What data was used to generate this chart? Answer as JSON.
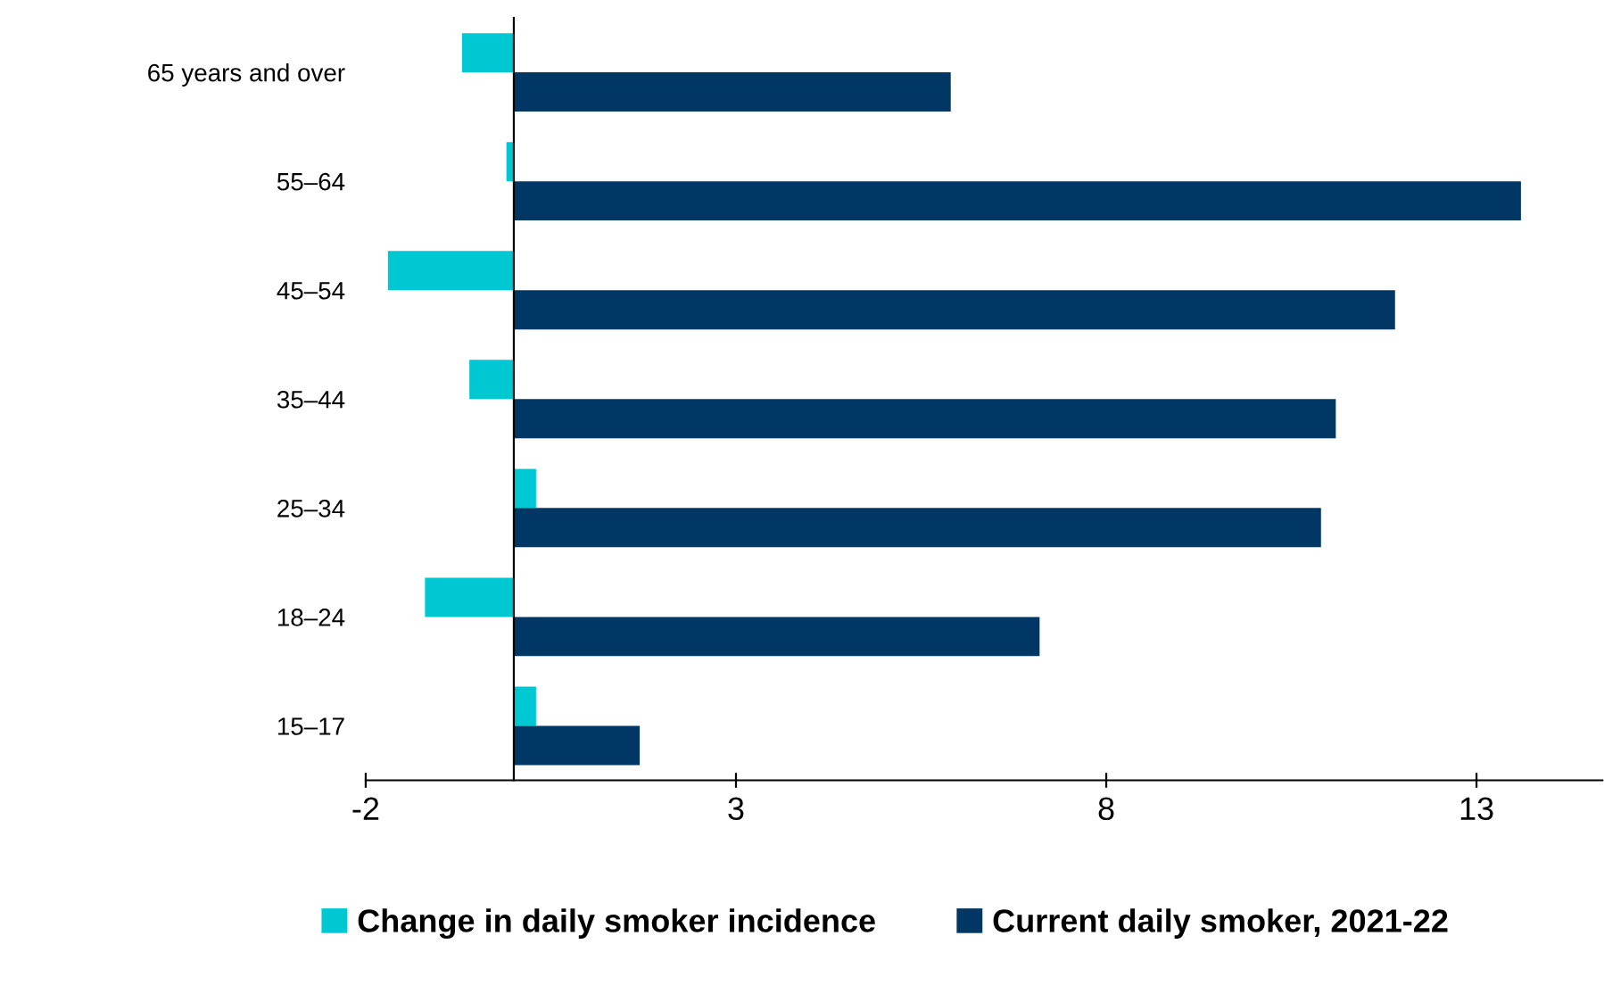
{
  "chart_data": {
    "type": "bar",
    "orientation": "horizontal",
    "categories": [
      "65 years and over",
      "55–64",
      "45–54",
      "35–44",
      "25–34",
      "18–24",
      "15–17"
    ],
    "series": [
      {
        "name": "Change in daily smoker incidence",
        "color": "#00c8d2",
        "values": [
          -0.7,
          -0.1,
          -1.7,
          -0.6,
          0.3,
          -1.2,
          0.3
        ]
      },
      {
        "name": "Current daily smoker, 2021-22",
        "color": "#003764",
        "values": [
          5.9,
          13.6,
          11.9,
          11.1,
          10.9,
          7.1,
          1.7
        ]
      }
    ],
    "xlim": [
      -2,
      14.7
    ],
    "xticks": [
      -2,
      3,
      8,
      13
    ],
    "grid": false,
    "legend": "bottom"
  }
}
